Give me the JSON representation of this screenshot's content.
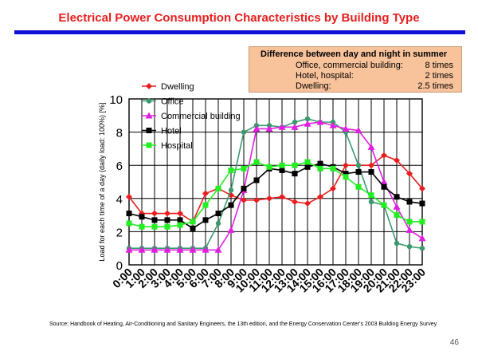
{
  "slide": {
    "title": "Electrical Power Consumption Characteristics by Building Type",
    "title_color": "#e81e1e",
    "rule_color": "#1010d8",
    "page_number": "46",
    "source": "Source:  Handbook of Heating, Air-Conditioning and Sanitary Engineers, the 13th edition, and the Energy Conservation Center's 2003 Building Energy Survey"
  },
  "note": {
    "heading": "Difference between day and night  in summer",
    "rows": [
      {
        "label": "Office, commercial building:",
        "value": "8 times"
      },
      {
        "label": "Hotel, hospital:",
        "value": "2 times"
      },
      {
        "label": "Dwelling:",
        "value": "2.5 times"
      }
    ],
    "background": "#f8c29a"
  },
  "chart_data": {
    "type": "line",
    "title": "",
    "xlabel": "",
    "ylabel": "Load for each time of a day (daily load: 100%) [%]",
    "ylim": [
      0,
      10
    ],
    "yticks": [
      "0",
      "2",
      "4",
      "6",
      "8",
      "10"
    ],
    "grid": true,
    "legend": "top-left",
    "categories": [
      "0:00",
      "1:00",
      "2:00",
      "3:00",
      "4:00",
      "5:00",
      "6:00",
      "7:00",
      "8:00",
      "9:00",
      "10:00",
      "11:00",
      "12:00",
      "13:00",
      "14:00",
      "15:00",
      "16:00",
      "17:00",
      "18:00",
      "19:00",
      "20:00",
      "21:00",
      "22:00",
      "23:00"
    ],
    "series": [
      {
        "name": "Dwelling",
        "color": "#e81e1e",
        "marker": "diamond",
        "values": [
          4.1,
          3.1,
          3.1,
          3.1,
          3.1,
          2.6,
          4.3,
          4.6,
          4.2,
          3.9,
          3.9,
          4.0,
          4.1,
          3.8,
          3.7,
          4.1,
          4.6,
          6.0,
          6.0,
          6.0,
          6.6,
          6.3,
          5.5,
          4.6
        ]
      },
      {
        "name": "Office",
        "color": "#3a9a6e",
        "marker": "circle",
        "values": [
          1.0,
          1.0,
          1.0,
          1.0,
          1.0,
          1.0,
          1.0,
          2.5,
          4.5,
          8.0,
          8.4,
          8.4,
          8.3,
          8.6,
          8.8,
          8.6,
          8.6,
          8.0,
          6.0,
          3.8,
          3.6,
          1.3,
          1.1,
          1.0
        ]
      },
      {
        "name": "Commercial building",
        "color": "#e020e0",
        "marker": "triangle",
        "values": [
          0.9,
          0.9,
          0.9,
          0.9,
          0.9,
          0.9,
          0.9,
          0.9,
          2.1,
          4.5,
          8.2,
          8.2,
          8.3,
          8.3,
          8.5,
          8.6,
          8.4,
          8.2,
          8.1,
          7.1,
          5.0,
          3.5,
          2.1,
          1.6
        ]
      },
      {
        "name": "Hotel",
        "color": "#000000",
        "marker": "square",
        "values": [
          3.1,
          2.9,
          2.7,
          2.7,
          2.7,
          2.2,
          2.7,
          3.1,
          3.6,
          4.6,
          5.1,
          5.8,
          5.7,
          5.5,
          5.9,
          6.1,
          5.9,
          5.5,
          5.6,
          5.6,
          4.7,
          4.1,
          3.8,
          3.7
        ]
      },
      {
        "name": "Hospital",
        "color": "#22ee22",
        "marker": "square",
        "values": [
          2.5,
          2.3,
          2.3,
          2.3,
          2.4,
          2.6,
          3.6,
          4.6,
          5.7,
          5.8,
          6.2,
          5.9,
          6.0,
          6.0,
          6.2,
          5.8,
          5.8,
          5.3,
          4.7,
          4.2,
          3.6,
          3.0,
          2.6,
          2.6
        ]
      }
    ]
  }
}
